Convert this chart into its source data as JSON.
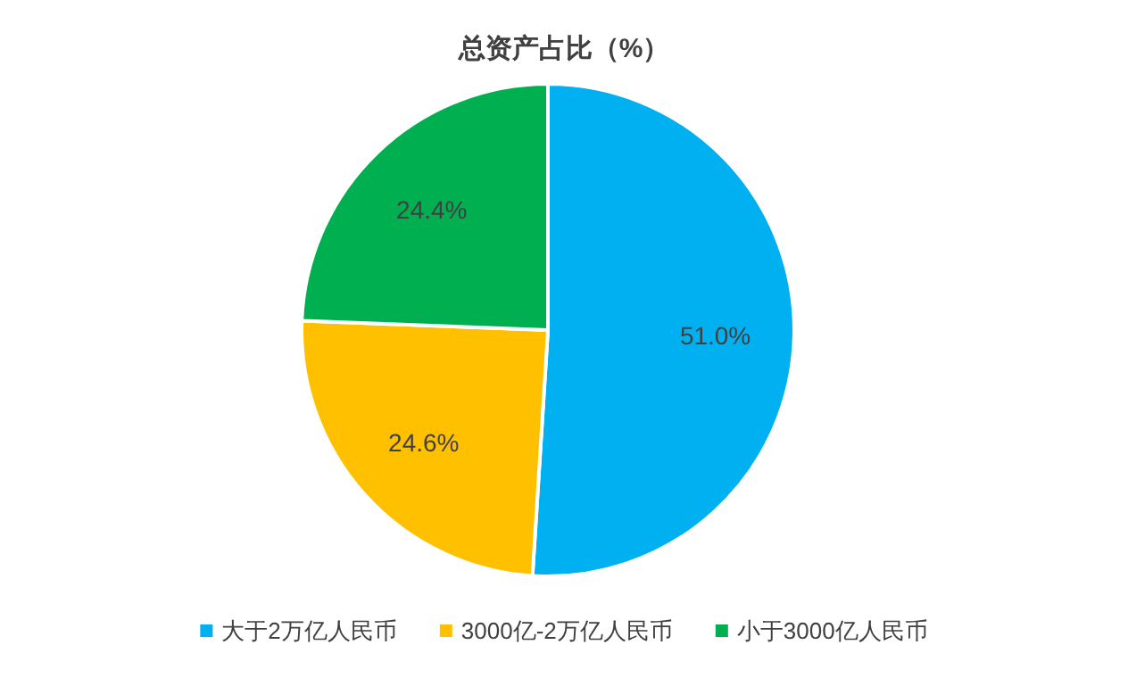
{
  "chart_data": {
    "type": "pie",
    "title": "总资产占比（%）",
    "categories": [
      "大于2万亿人民币",
      "3000亿-2万亿人民币",
      "小于3000亿人民币"
    ],
    "values": [
      51.0,
      24.6,
      24.4
    ],
    "colors": [
      "#00b0f0",
      "#ffc000",
      "#00b050"
    ],
    "value_labels": [
      "51.0%",
      "24.6%",
      "24.4%"
    ],
    "legend": "bottom"
  }
}
